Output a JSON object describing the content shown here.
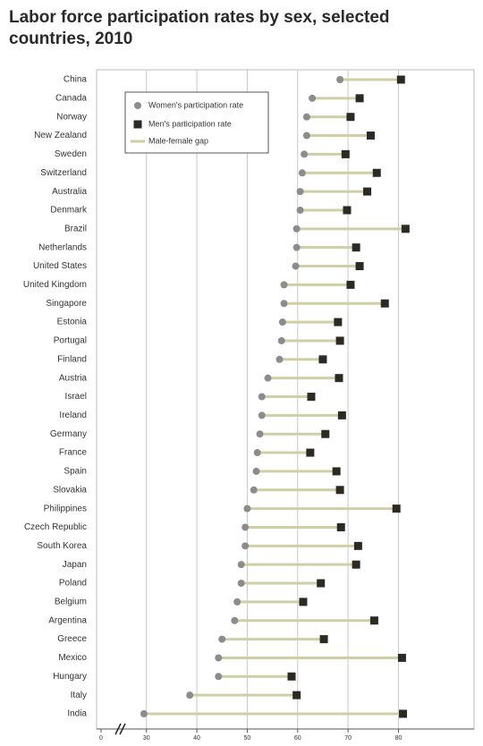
{
  "chart_data": {
    "type": "dumbbell",
    "title": "Labor force participation rates by sex, selected countries, 2010",
    "categories": [
      "China",
      "Canada",
      "Norway",
      "New Zealand",
      "Sweden",
      "Switzerland",
      "Australia",
      "Denmark",
      "Brazil",
      "Netherlands",
      "United States",
      "United Kingdom",
      "Singapore",
      "Estonia",
      "Portugal",
      "Finland",
      "Austria",
      "Israel",
      "Ireland",
      "Germany",
      "France",
      "Spain",
      "Slovakia",
      "Philippines",
      "Czech Republic",
      "South Korea",
      "Japan",
      "Poland",
      "Belgium",
      "Argentina",
      "Greece",
      "Mexico",
      "Hungary",
      "Italy",
      "India"
    ],
    "series": [
      {
        "name": "Women's participation rate",
        "color": "#8c8c8c",
        "values": [
          68.4,
          62.9,
          61.8,
          61.8,
          61.3,
          60.9,
          60.5,
          60.5,
          59.8,
          59.8,
          59.6,
          57.3,
          57.3,
          57.0,
          56.8,
          56.4,
          54.1,
          52.9,
          52.9,
          52.5,
          52.0,
          51.8,
          51.3,
          50.0,
          49.6,
          49.6,
          48.8,
          48.8,
          48.0,
          47.5,
          45.0,
          44.3,
          44.3,
          38.6,
          29.5
        ]
      },
      {
        "name": "Men's participation rate",
        "color": "#2b2a24",
        "values": [
          80.5,
          72.3,
          70.5,
          74.5,
          69.5,
          75.7,
          73.8,
          69.8,
          81.4,
          71.6,
          72.3,
          70.5,
          77.3,
          68.0,
          68.4,
          65.0,
          68.2,
          62.7,
          68.8,
          65.5,
          62.5,
          67.7,
          68.4,
          79.6,
          68.6,
          72.0,
          71.6,
          64.6,
          61.1,
          75.2,
          65.2,
          80.7,
          58.8,
          59.8,
          80.9
        ]
      }
    ],
    "gap": {
      "name": "Male-female gap",
      "color": "#cfcfa6"
    },
    "xlim": [
      21,
      95
    ],
    "xticks": [
      0,
      30,
      40,
      50,
      60,
      70,
      80
    ],
    "axis_break": true,
    "grid": true,
    "legend": "top-left"
  }
}
